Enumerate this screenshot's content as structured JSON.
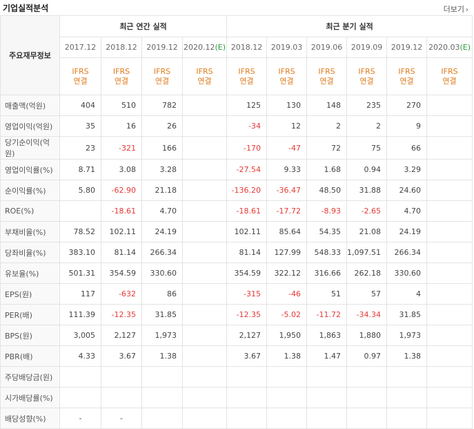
{
  "header": {
    "title": "기업실적분석",
    "more_label": "더보기"
  },
  "table": {
    "row_header": "주요재무정보",
    "group_annual": "최근 연간 실적",
    "group_quarter": "최근 분기 실적",
    "columns": [
      {
        "date": "2017.12",
        "estimate": "",
        "ifrs": "IFRS",
        "basis": "연결"
      },
      {
        "date": "2018.12",
        "estimate": "",
        "ifrs": "IFRS",
        "basis": "연결"
      },
      {
        "date": "2019.12",
        "estimate": "",
        "ifrs": "IFRS",
        "basis": "연결"
      },
      {
        "date": "2020.12",
        "estimate": "(E)",
        "ifrs": "IFRS",
        "basis": "연결"
      },
      {
        "date": "2018.12",
        "estimate": "",
        "ifrs": "IFRS",
        "basis": "연결"
      },
      {
        "date": "2019.03",
        "estimate": "",
        "ifrs": "IFRS",
        "basis": "연결"
      },
      {
        "date": "2019.06",
        "estimate": "",
        "ifrs": "IFRS",
        "basis": "연결"
      },
      {
        "date": "2019.09",
        "estimate": "",
        "ifrs": "IFRS",
        "basis": "연결"
      },
      {
        "date": "2019.12",
        "estimate": "",
        "ifrs": "IFRS",
        "basis": "연결"
      },
      {
        "date": "2020.03",
        "estimate": "(E)",
        "ifrs": "IFRS",
        "basis": "연결"
      }
    ],
    "rows": [
      {
        "label": "매출액(억원)",
        "values": [
          "404",
          "510",
          "782",
          "",
          "125",
          "130",
          "148",
          "235",
          "270",
          ""
        ],
        "sep": false
      },
      {
        "label": "영업이익(억원)",
        "values": [
          "35",
          "16",
          "26",
          "",
          "-34",
          "12",
          "2",
          "2",
          "9",
          ""
        ],
        "sep": false
      },
      {
        "label": "당기순이익(억원)",
        "values": [
          "23",
          "-321",
          "166",
          "",
          "-170",
          "-47",
          "72",
          "75",
          "66",
          ""
        ],
        "sep": false
      },
      {
        "label": "영업이익률(%)",
        "values": [
          "8.71",
          "3.08",
          "3.28",
          "",
          "-27.54",
          "9.33",
          "1.68",
          "0.94",
          "3.29",
          ""
        ],
        "sep": true
      },
      {
        "label": "순이익률(%)",
        "values": [
          "5.80",
          "-62.90",
          "21.18",
          "",
          "-136.20",
          "-36.47",
          "48.50",
          "31.88",
          "24.60",
          ""
        ],
        "sep": false
      },
      {
        "label": "ROE(%)",
        "values": [
          "",
          "-18.61",
          "4.70",
          "",
          "-18.61",
          "-17.72",
          "-8.93",
          "-2.65",
          "4.70",
          ""
        ],
        "sep": false
      },
      {
        "label": "부채비율(%)",
        "values": [
          "78.52",
          "102.11",
          "24.19",
          "",
          "102.11",
          "85.64",
          "54.35",
          "21.08",
          "24.19",
          ""
        ],
        "sep": true
      },
      {
        "label": "당좌비율(%)",
        "values": [
          "383.10",
          "81.14",
          "266.34",
          "",
          "81.14",
          "127.99",
          "548.33",
          "1,097.51",
          "266.34",
          ""
        ],
        "sep": false
      },
      {
        "label": "유보율(%)",
        "values": [
          "501.31",
          "354.59",
          "330.60",
          "",
          "354.59",
          "322.12",
          "316.66",
          "262.18",
          "330.60",
          ""
        ],
        "sep": false
      },
      {
        "label": "EPS(원)",
        "values": [
          "117",
          "-632",
          "86",
          "",
          "-315",
          "-46",
          "51",
          "57",
          "4",
          ""
        ],
        "sep": true
      },
      {
        "label": "PER(배)",
        "values": [
          "111.39",
          "-12.35",
          "31.85",
          "",
          "-12.35",
          "-5.02",
          "-11.72",
          "-34.34",
          "31.85",
          ""
        ],
        "sep": false
      },
      {
        "label": "BPS(원)",
        "values": [
          "3,005",
          "2,127",
          "1,973",
          "",
          "2,127",
          "1,950",
          "1,863",
          "1,880",
          "1,973",
          ""
        ],
        "sep": false
      },
      {
        "label": "PBR(배)",
        "values": [
          "4.33",
          "3.67",
          "1.38",
          "",
          "3.67",
          "1.38",
          "1.47",
          "0.97",
          "1.38",
          ""
        ],
        "sep": false
      },
      {
        "label": "주당배당금(원)",
        "values": [
          "",
          "",
          "",
          "",
          "",
          "",
          "",
          "",
          "",
          ""
        ],
        "sep": true
      },
      {
        "label": "시가배당률(%)",
        "values": [
          "",
          "",
          "",
          "",
          "",
          "",
          "",
          "",
          "",
          ""
        ],
        "sep": false
      },
      {
        "label": "배당성향(%)",
        "values": [
          "-",
          "-",
          "",
          "",
          "",
          "",
          "",
          "",
          "",
          ""
        ],
        "sep": false
      }
    ]
  }
}
